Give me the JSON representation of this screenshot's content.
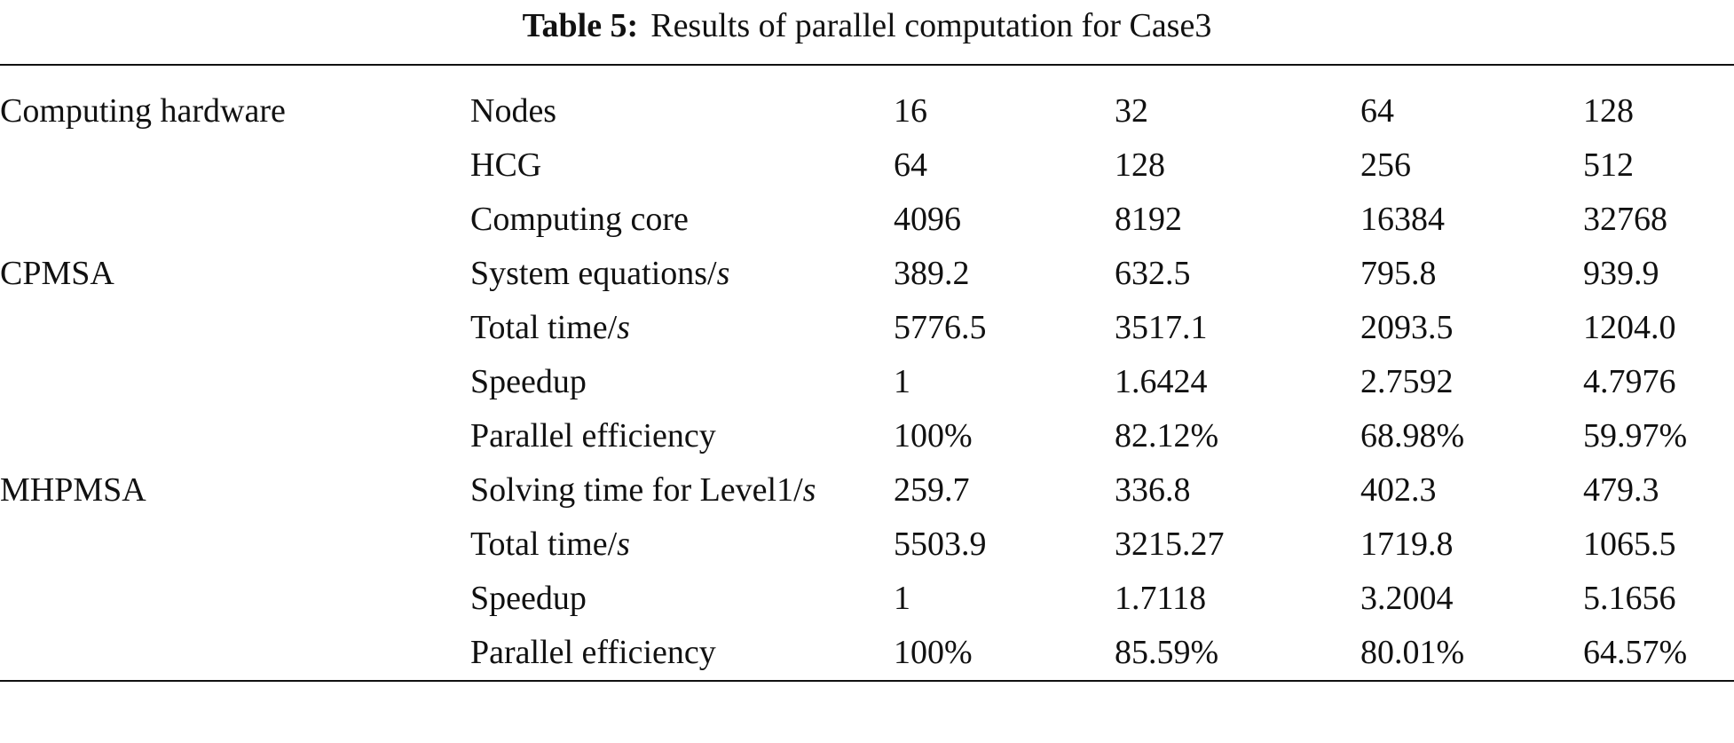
{
  "caption": {
    "label": "Table 5:",
    "text": "Results of parallel computation for Case3"
  },
  "table": {
    "groups": [
      {
        "name": "Computing hardware",
        "rows": [
          {
            "metric": {
              "text": "Nodes"
            },
            "values": [
              "16",
              "32",
              "64",
              "128"
            ]
          },
          {
            "metric": {
              "text": "HCG"
            },
            "values": [
              "64",
              "128",
              "256",
              "512"
            ]
          },
          {
            "metric": {
              "text": "Computing core"
            },
            "values": [
              "4096",
              "8192",
              "16384",
              "32768"
            ]
          }
        ]
      },
      {
        "name": "CPMSA",
        "rows": [
          {
            "metric": {
              "text": "System equations/",
              "unit": "s"
            },
            "values": [
              "389.2",
              "632.5",
              "795.8",
              "939.9"
            ]
          },
          {
            "metric": {
              "text": "Total time/",
              "unit": "s"
            },
            "values": [
              "5776.5",
              "3517.1",
              "2093.5",
              "1204.0"
            ]
          },
          {
            "metric": {
              "text": "Speedup"
            },
            "values": [
              "1",
              "1.6424",
              "2.7592",
              "4.7976"
            ]
          },
          {
            "metric": {
              "text": "Parallel efficiency"
            },
            "values": [
              "100%",
              "82.12%",
              "68.98%",
              "59.97%"
            ]
          }
        ]
      },
      {
        "name": "MHPMSA",
        "rows": [
          {
            "metric": {
              "text": "Solving time for Level1/",
              "unit": "s"
            },
            "values": [
              "259.7",
              "336.8",
              "402.3",
              "479.3"
            ]
          },
          {
            "metric": {
              "text": "Total time/",
              "unit": "s"
            },
            "values": [
              "5503.9",
              "3215.27",
              "1719.8",
              "1065.5"
            ]
          },
          {
            "metric": {
              "text": "Speedup"
            },
            "values": [
              "1",
              "1.7118",
              "3.2004",
              "5.1656"
            ]
          },
          {
            "metric": {
              "text": "Parallel efficiency"
            },
            "values": [
              "100%",
              "85.59%",
              "80.01%",
              "64.57%"
            ]
          }
        ]
      }
    ]
  }
}
